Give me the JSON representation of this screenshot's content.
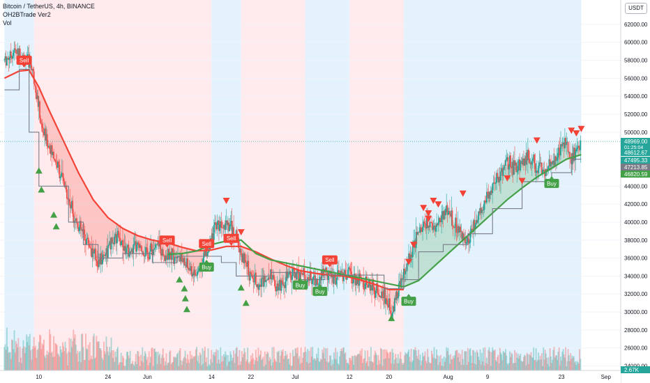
{
  "legend": {
    "symbol": "Bitcoin / TetherUS, 4h, BINANCE",
    "indicator": "OH2BTrade Ver2",
    "volume": "Vol"
  },
  "axis_currency": "USDT",
  "chart_data": {
    "type": "candlestick",
    "title": "Bitcoin / TetherUS, 4h, BINANCE",
    "ylim": [
      23500,
      64700
    ],
    "y_ticks": [
      {
        "value": 62000,
        "label": "62000.00"
      },
      {
        "value": 60000,
        "label": "60000.00"
      },
      {
        "value": 58000,
        "label": "58000.00"
      },
      {
        "value": 56000,
        "label": "56000.00"
      },
      {
        "value": 54000,
        "label": "54000.00"
      },
      {
        "value": 52000,
        "label": "52000.00"
      },
      {
        "value": 50000,
        "label": "50000.00"
      },
      {
        "value": 44000,
        "label": "44000.00"
      },
      {
        "value": 42000,
        "label": "42000.00"
      },
      {
        "value": 40000,
        "label": "40000.00"
      },
      {
        "value": 38000,
        "label": "38000.00"
      },
      {
        "value": 36000,
        "label": "36000.00"
      },
      {
        "value": 34000,
        "label": "34000.00"
      },
      {
        "value": 32000,
        "label": "32000.00"
      },
      {
        "value": 30000,
        "label": "30000.00"
      },
      {
        "value": 28000,
        "label": "28000.00"
      },
      {
        "value": 26000,
        "label": "26000.00"
      },
      {
        "value": 24000,
        "label": "24000.00"
      }
    ],
    "x_ticks": [
      {
        "day": 10,
        "label": "10"
      },
      {
        "day": 24,
        "label": "24"
      },
      {
        "day": 32,
        "label": "Jun"
      },
      {
        "day": 45,
        "label": "14"
      },
      {
        "day": 53,
        "label": "22"
      },
      {
        "day": 62,
        "label": "Jul"
      },
      {
        "day": 73,
        "label": "12"
      },
      {
        "day": 81,
        "label": "20"
      },
      {
        "day": 93,
        "label": "Aug"
      },
      {
        "day": 101,
        "label": "9"
      },
      {
        "day": 116,
        "label": "23"
      },
      {
        "day": 125,
        "label": "Sep"
      }
    ],
    "x_unit": "days since May 1, 2021",
    "price_labels": [
      {
        "value": 48969.0,
        "label": "48969.00",
        "sub": "01:25:04",
        "color": "#26a69a"
      },
      {
        "value": 48612.67,
        "label": "48612.67",
        "color": "#26a69a"
      },
      {
        "value": 47495.33,
        "label": "47495.33",
        "color": "#26a69a"
      },
      {
        "value": 47213.85,
        "label": "47213.85",
        "color": "#787b86"
      },
      {
        "value": 46820.59,
        "label": "46820.59",
        "color": "#43a047"
      }
    ],
    "volume_label": "2.67K",
    "zones": [
      {
        "start": 3,
        "end": 9,
        "color": "blue"
      },
      {
        "start": 9,
        "end": 45,
        "color": "red"
      },
      {
        "start": 45,
        "end": 51,
        "color": "blue"
      },
      {
        "start": 51,
        "end": 64,
        "color": "red"
      },
      {
        "start": 64,
        "end": 73,
        "color": "blue"
      },
      {
        "start": 73,
        "end": 84,
        "color": "red"
      },
      {
        "start": 84,
        "end": 120,
        "color": "blue"
      }
    ],
    "close_path": [
      [
        3,
        58000
      ],
      [
        5,
        59000
      ],
      [
        7,
        58300
      ],
      [
        8.5,
        57500
      ],
      [
        9.5,
        54500
      ],
      [
        10.5,
        50500
      ],
      [
        12,
        48500
      ],
      [
        14,
        46000
      ],
      [
        16,
        42500
      ],
      [
        18,
        39500
      ],
      [
        20,
        37800
      ],
      [
        22,
        35500
      ],
      [
        24,
        37000
      ],
      [
        26,
        38500
      ],
      [
        28,
        36500
      ],
      [
        30,
        37200
      ],
      [
        32,
        36500
      ],
      [
        34,
        37400
      ],
      [
        36,
        36000
      ],
      [
        38,
        36600
      ],
      [
        40,
        35000
      ],
      [
        42,
        34000
      ],
      [
        43,
        35500
      ],
      [
        45,
        38000
      ],
      [
        46,
        39800
      ],
      [
        48,
        40200
      ],
      [
        50,
        38500
      ],
      [
        51,
        36500
      ],
      [
        53,
        34000
      ],
      [
        55,
        33000
      ],
      [
        57,
        34500
      ],
      [
        58,
        32800
      ],
      [
        60,
        33600
      ],
      [
        62,
        34400
      ],
      [
        64,
        34000
      ],
      [
        66,
        33500
      ],
      [
        68,
        34600
      ],
      [
        70,
        33800
      ],
      [
        72,
        34400
      ],
      [
        74,
        33800
      ],
      [
        76,
        33200
      ],
      [
        78,
        32500
      ],
      [
        80,
        31800
      ],
      [
        81.5,
        30200
      ],
      [
        83,
        32500
      ],
      [
        84,
        34000
      ],
      [
        86,
        37500
      ],
      [
        88,
        39800
      ],
      [
        90,
        39500
      ],
      [
        91,
        40000
      ],
      [
        93,
        41500
      ],
      [
        95,
        39000
      ],
      [
        97,
        38000
      ],
      [
        99,
        40500
      ],
      [
        101,
        43000
      ],
      [
        103,
        45000
      ],
      [
        105,
        46500
      ],
      [
        107,
        46000
      ],
      [
        109,
        47500
      ],
      [
        111,
        46000
      ],
      [
        113,
        45500
      ],
      [
        115,
        47500
      ],
      [
        117,
        49000
      ],
      [
        118,
        47000
      ],
      [
        119,
        48000
      ],
      [
        120,
        48969
      ]
    ],
    "series": [
      {
        "color": "#f44336",
        "values": [
          [
            3,
            56000
          ],
          [
            6,
            56800
          ],
          [
            8,
            56900
          ],
          [
            10,
            55000
          ],
          [
            12,
            52500
          ],
          [
            15,
            49000
          ],
          [
            18,
            45500
          ],
          [
            21,
            42500
          ],
          [
            24,
            40500
          ],
          [
            27,
            39300
          ],
          [
            30,
            38500
          ],
          [
            33,
            38000
          ],
          [
            36,
            37700
          ],
          [
            39,
            37200
          ],
          [
            42,
            36800
          ],
          [
            45,
            36900
          ],
          [
            48,
            37300
          ],
          [
            51,
            37300
          ],
          [
            54,
            36700
          ],
          [
            57,
            35900
          ],
          [
            60,
            35200
          ],
          [
            63,
            34600
          ],
          [
            66,
            34300
          ],
          [
            69,
            34100
          ],
          [
            72,
            34000
          ],
          [
            75,
            33600
          ],
          [
            78,
            33100
          ],
          [
            81,
            32500
          ],
          [
            84,
            32500
          ]
        ]
      },
      {
        "color": "#43a047",
        "values": [
          [
            36,
            36400
          ],
          [
            39,
            36500
          ],
          [
            42,
            36800
          ],
          [
            45,
            37500
          ],
          [
            48,
            37900
          ],
          [
            51,
            38000
          ],
          [
            54,
            36500
          ],
          [
            57,
            35800
          ],
          [
            84,
            32800
          ],
          [
            87,
            33500
          ],
          [
            90,
            35000
          ],
          [
            93,
            36500
          ],
          [
            96,
            38000
          ],
          [
            99,
            39500
          ],
          [
            102,
            41000
          ],
          [
            105,
            42500
          ],
          [
            108,
            43800
          ],
          [
            111,
            45000
          ],
          [
            114,
            46000
          ],
          [
            117,
            47000
          ],
          [
            120,
            47500
          ]
        ]
      },
      {
        "color": "#787b86",
        "values": [
          [
            3,
            54700
          ],
          [
            6,
            54700
          ],
          [
            6,
            57000
          ],
          [
            8,
            57000
          ],
          [
            8,
            50000
          ],
          [
            10,
            50000
          ],
          [
            10,
            44000
          ],
          [
            16,
            44000
          ],
          [
            16,
            40000
          ],
          [
            19,
            40000
          ],
          [
            19,
            37500
          ],
          [
            22,
            37500
          ],
          [
            22,
            36000
          ],
          [
            27,
            36000
          ],
          [
            27,
            36500
          ],
          [
            33,
            36500
          ],
          [
            33,
            35500
          ],
          [
            38,
            35500
          ],
          [
            38,
            36200
          ],
          [
            47,
            36200
          ],
          [
            47,
            35500
          ],
          [
            50,
            35500
          ],
          [
            50,
            34000
          ],
          [
            57,
            34000
          ],
          [
            57,
            34400
          ],
          [
            63,
            34400
          ],
          [
            63,
            33600
          ],
          [
            68,
            33600
          ],
          [
            68,
            34100
          ],
          [
            80,
            34100
          ],
          [
            80,
            32600
          ],
          [
            84,
            32600
          ],
          [
            84,
            33600
          ],
          [
            87,
            33600
          ],
          [
            87,
            36700
          ],
          [
            92,
            36700
          ],
          [
            92,
            37500
          ],
          [
            97,
            37500
          ],
          [
            97,
            38700
          ],
          [
            102,
            38700
          ],
          [
            102,
            41500
          ],
          [
            108,
            41500
          ],
          [
            108,
            44500
          ],
          [
            114,
            44500
          ],
          [
            114,
            45500
          ],
          [
            118,
            45500
          ],
          [
            118,
            47000
          ],
          [
            120,
            47000
          ]
        ]
      }
    ],
    "signals": [
      {
        "type": "sell",
        "label": "Sell",
        "day": 7,
        "price": 58000
      },
      {
        "type": "sell",
        "label": "Sell",
        "day": 36,
        "price": 38000
      },
      {
        "type": "sell",
        "label": "Sell",
        "day": 44,
        "price": 37600
      },
      {
        "type": "sell",
        "label": "Sell",
        "day": 49,
        "price": 38200
      },
      {
        "type": "sell",
        "label": "Sell",
        "day": 69,
        "price": 35800
      },
      {
        "type": "buy",
        "label": "Buy",
        "day": 44,
        "price": 35000
      },
      {
        "type": "buy",
        "label": "Buy",
        "day": 63,
        "price": 33000
      },
      {
        "type": "buy",
        "label": "Buy",
        "day": 67,
        "price": 32300
      },
      {
        "type": "buy",
        "label": "Buy",
        "day": 85,
        "price": 31200
      },
      {
        "type": "buy",
        "label": "Buy",
        "day": 114,
        "price": 44300
      }
    ],
    "buy_arrows": [
      [
        10,
        45700
      ],
      [
        10.5,
        43600
      ],
      [
        13,
        40800
      ],
      [
        13.5,
        39500
      ],
      [
        38.5,
        33600
      ],
      [
        39.5,
        32600
      ],
      [
        39.7,
        31500
      ],
      [
        40,
        30300
      ],
      [
        51,
        32700
      ],
      [
        52,
        31000
      ],
      [
        81.5,
        29300
      ]
    ],
    "sell_arrows": [
      [
        48,
        42400
      ],
      [
        51,
        38900
      ],
      [
        85,
        35600
      ],
      [
        86,
        37500
      ],
      [
        88,
        41600
      ],
      [
        89,
        41000
      ],
      [
        90,
        42400
      ],
      [
        89,
        40400
      ],
      [
        91,
        42000
      ],
      [
        96,
        43200
      ],
      [
        105,
        44900
      ],
      [
        108,
        44600
      ],
      [
        111,
        49100
      ],
      [
        118,
        50200
      ],
      [
        119,
        49900
      ],
      [
        120,
        50400
      ]
    ]
  }
}
